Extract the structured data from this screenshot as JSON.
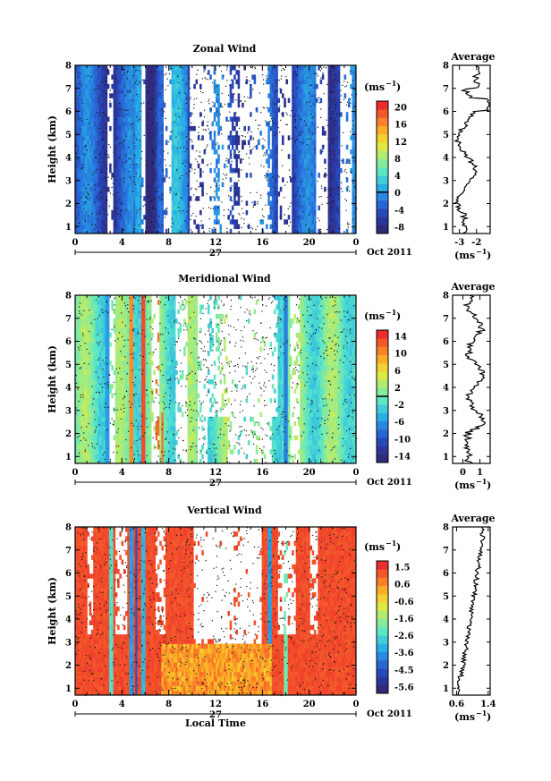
{
  "panels": [
    {
      "id": "zonal",
      "title": "Zonal Wind",
      "ylabel": "Height (km)",
      "y_ticks": [
        1,
        2,
        3,
        4,
        5,
        6,
        7,
        8
      ],
      "x_ticks": [
        "0",
        "4",
        "8",
        "12",
        "16",
        "20",
        "0"
      ],
      "day_label": "27",
      "month_label": "Oct 2011",
      "xlabel": "",
      "unit_label": "(ms",
      "unit_exp": "−1",
      "colorbar_ticks": [
        "20",
        "16",
        "12",
        "8",
        "4",
        "0",
        "-4",
        "-8"
      ],
      "colorbar_range": [
        -10,
        22
      ],
      "colorbar_marker": 0,
      "avg_title": "Average",
      "avg_xticks": [
        "-3",
        "-2"
      ],
      "avg_xrange": [
        -3.4,
        -1.2
      ],
      "avg_xtick_values": [
        -3,
        -2
      ],
      "avg_unit": "(ms",
      "avg_unit_exp": "−1",
      "pattern": "zonal"
    },
    {
      "id": "meridional",
      "title": "Meridional Wind",
      "ylabel": "Height (km)",
      "y_ticks": [
        1,
        2,
        3,
        4,
        5,
        6,
        7,
        8
      ],
      "x_ticks": [
        "0",
        "4",
        "8",
        "12",
        "16",
        "20",
        "0"
      ],
      "day_label": "27",
      "month_label": "Oct 2011",
      "xlabel": "",
      "unit_label": "(ms",
      "unit_exp": "−1",
      "colorbar_ticks": [
        "14",
        "10",
        "6",
        "2",
        "-2",
        "-6",
        "-10",
        "-14"
      ],
      "colorbar_range": [
        -16,
        16
      ],
      "colorbar_marker": 0,
      "avg_title": "Average",
      "avg_xticks": [
        "0",
        "1"
      ],
      "avg_xrange": [
        -0.6,
        1.6
      ],
      "avg_xtick_values": [
        0,
        1
      ],
      "avg_unit": "(ms",
      "avg_unit_exp": "−1",
      "pattern": "meridional"
    },
    {
      "id": "vertical",
      "title": "Vertical Wind",
      "ylabel": "Height (km)",
      "y_ticks": [
        1,
        2,
        3,
        4,
        5,
        6,
        7,
        8
      ],
      "x_ticks": [
        "0",
        "4",
        "8",
        "12",
        "16",
        "20",
        "0"
      ],
      "day_label": "27",
      "month_label": "Oct 2011",
      "xlabel": "Local Time",
      "unit_label": "(ms",
      "unit_exp": "−1",
      "colorbar_ticks": [
        "1.5",
        "0.6",
        "-0.6",
        "-1.6",
        "-2.6",
        "-3.6",
        "-4.5",
        "-5.6"
      ],
      "colorbar_range": [
        -6,
        2
      ],
      "colorbar_marker": null,
      "avg_title": "Average",
      "avg_xticks": [
        "0.6",
        "1.4"
      ],
      "avg_xrange": [
        0.5,
        1.45
      ],
      "avg_xtick_values": [
        0.6,
        1.4
      ],
      "avg_unit": "(ms",
      "avg_unit_exp": "−1",
      "pattern": "vertical"
    }
  ],
  "chart_data": [
    {
      "type": "heatmap",
      "title": "Zonal Wind",
      "xlabel": "",
      "ylabel": "Height (km)",
      "xlim": [
        0,
        24
      ],
      "ylim": [
        0.7,
        8
      ],
      "colorbar_label": "(ms-1)",
      "colorbar_range": [
        -10,
        22
      ]
    },
    {
      "type": "line",
      "title": "Average",
      "ylabel": "Height (km)",
      "xlabel": "(ms-1)",
      "xlim": [
        -3.4,
        -1.2
      ],
      "ylim": [
        0.7,
        8
      ]
    },
    {
      "type": "heatmap",
      "title": "Meridional Wind",
      "xlabel": "",
      "ylabel": "Height (km)",
      "xlim": [
        0,
        24
      ],
      "ylim": [
        0.7,
        8
      ],
      "colorbar_label": "(ms-1)",
      "colorbar_range": [
        -16,
        16
      ]
    },
    {
      "type": "line",
      "title": "Average",
      "ylabel": "Height (km)",
      "xlabel": "(ms-1)",
      "xlim": [
        -0.6,
        1.6
      ],
      "ylim": [
        0.7,
        8
      ]
    },
    {
      "type": "heatmap",
      "title": "Vertical Wind",
      "xlabel": "Local Time",
      "ylabel": "Height (km)",
      "xlim": [
        0,
        24
      ],
      "ylim": [
        0.7,
        8
      ],
      "colorbar_label": "(ms-1)",
      "colorbar_range": [
        -6,
        2
      ]
    },
    {
      "type": "line",
      "title": "Average",
      "ylabel": "Height (km)",
      "xlabel": "(ms-1)",
      "xlim": [
        0.5,
        1.45
      ],
      "ylim": [
        0.7,
        8
      ]
    }
  ]
}
